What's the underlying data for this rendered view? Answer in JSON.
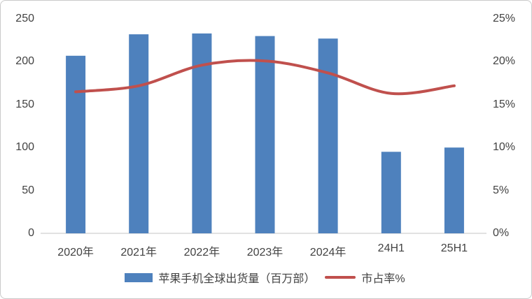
{
  "chart_data": {
    "type": "bar+line combo",
    "categories": [
      "2020年",
      "2021年",
      "2022年",
      "2023年",
      "2024年",
      "24H1",
      "25H1"
    ],
    "series": [
      {
        "name": "苹果手机全球出货量（百万部）",
        "type": "bar",
        "axis": "left",
        "values": [
          207,
          232,
          233,
          230,
          227,
          95,
          100
        ],
        "color": "#4e81bd"
      },
      {
        "name": "市占率%",
        "type": "line",
        "axis": "right",
        "values": [
          16.5,
          17.2,
          19.6,
          20.1,
          18.7,
          16.3,
          17.2
        ],
        "color": "#c0504d"
      }
    ],
    "left_axis": {
      "min": 0,
      "max": 250,
      "ticks": [
        {
          "value": 250,
          "label": "250"
        },
        {
          "value": 200,
          "label": "200"
        },
        {
          "value": 150,
          "label": "150"
        },
        {
          "value": 100,
          "label": "100"
        },
        {
          "value": 50,
          "label": "50"
        },
        {
          "value": 0,
          "label": "0"
        }
      ]
    },
    "right_axis": {
      "min": 0,
      "max": 25,
      "ticks": [
        {
          "value": 25,
          "label": "25%"
        },
        {
          "value": 20,
          "label": "20%"
        },
        {
          "value": 15,
          "label": "15%"
        },
        {
          "value": 10,
          "label": "10%"
        },
        {
          "value": 5,
          "label": "5%"
        },
        {
          "value": 0,
          "label": "0%"
        }
      ]
    },
    "title": "",
    "grid": false,
    "legend_position": "bottom"
  },
  "colors": {
    "bar": "#4e81bd",
    "line": "#c0504d",
    "axis_text": "#424242",
    "axis_line": "#d9d9d9",
    "frame_border": "#c9c9c9",
    "background": "#ffffff"
  }
}
